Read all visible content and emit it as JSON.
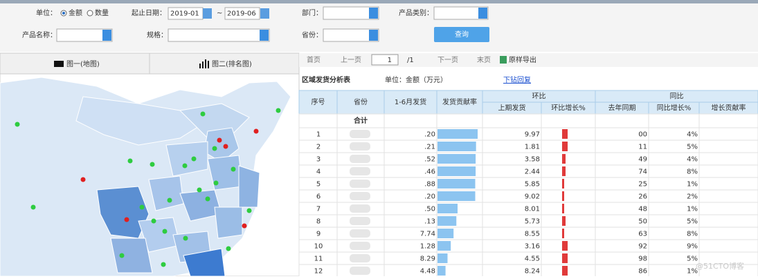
{
  "filters": {
    "unit_label": "单位：",
    "unit_options": [
      "金额",
      "数量"
    ],
    "date_label": "起止日期：",
    "date_start": "2019-01",
    "date_sep": "~",
    "date_end": "2019-06",
    "dept_label": "部门：",
    "category_label": "产品类别：",
    "product_label": "产品名称：",
    "spec_label": "规格：",
    "province_label": "省份：",
    "query_button": "查询"
  },
  "tabs": [
    "图一(地图)",
    "图二(排名图)"
  ],
  "toolbar": {
    "first": "首页",
    "prev": "上一页",
    "page": "1",
    "total": "/1",
    "next": "下一页",
    "last": "末页",
    "export": "原样导出"
  },
  "report": {
    "title": "区域发货分析表",
    "unit": "单位：金额（万元）",
    "link": "下钻回复",
    "headers": {
      "index": "序号",
      "province": "省份",
      "shipped": "1-6月发货",
      "contribution": "发货贡献率",
      "mom": "环比",
      "prev": "上期发货",
      "mom_growth": "环比增长%",
      "yoy_group": "同比",
      "last_year": "去年同期",
      "yoy_growth": "同比增长%",
      "growth_contribution": "增长贡献率"
    },
    "total_label": "合计",
    "rows": [
      {
        "index": 1,
        "shipped": ".20",
        "prev": "9.97",
        "last_year": "00",
        "yoy": "4%",
        "contribution_bar": 100,
        "mom_bar": 8
      },
      {
        "index": 2,
        "shipped": ".21",
        "prev": "1.81",
        "last_year": "11",
        "yoy": "5%",
        "contribution_bar": 96,
        "mom_bar": 8
      },
      {
        "index": 3,
        "shipped": ".52",
        "prev": "3.58",
        "last_year": "49",
        "yoy": "4%",
        "contribution_bar": 95,
        "mom_bar": 5
      },
      {
        "index": 4,
        "shipped": ".46",
        "prev": "2.44",
        "last_year": "74",
        "yoy": "8%",
        "contribution_bar": 95,
        "mom_bar": 5
      },
      {
        "index": 5,
        "shipped": ".88",
        "prev": "5.85",
        "last_year": "25",
        "yoy": "1%",
        "contribution_bar": 94,
        "mom_bar": 3
      },
      {
        "index": 6,
        "shipped": ".20",
        "prev": "9.02",
        "last_year": "26",
        "yoy": "2%",
        "contribution_bar": 94,
        "mom_bar": 3
      },
      {
        "index": 7,
        "shipped": ".50",
        "prev": "8.01",
        "last_year": "48",
        "yoy": "1%",
        "contribution_bar": 50,
        "mom_bar": 3
      },
      {
        "index": 8,
        "shipped": ".13",
        "prev": "5.73",
        "last_year": "50",
        "yoy": "5%",
        "contribution_bar": 47,
        "mom_bar": 5
      },
      {
        "index": 9,
        "shipped": "7.74",
        "prev": "8.55",
        "last_year": "63",
        "yoy": "8%",
        "contribution_bar": 40,
        "mom_bar": 3
      },
      {
        "index": 10,
        "shipped": "1.28",
        "prev": "3.16",
        "last_year": "92",
        "yoy": "9%",
        "contribution_bar": 33,
        "mom_bar": 8
      },
      {
        "index": 11,
        "shipped": "8.29",
        "prev": "4.55",
        "last_year": "98",
        "yoy": "5%",
        "contribution_bar": 25,
        "mom_bar": 8
      },
      {
        "index": 12,
        "shipped": "4.48",
        "prev": "8.24",
        "last_year": "86",
        "yoy": "1%",
        "contribution_bar": 20,
        "mom_bar": 8
      }
    ]
  },
  "watermark": "@51CTO博客"
}
